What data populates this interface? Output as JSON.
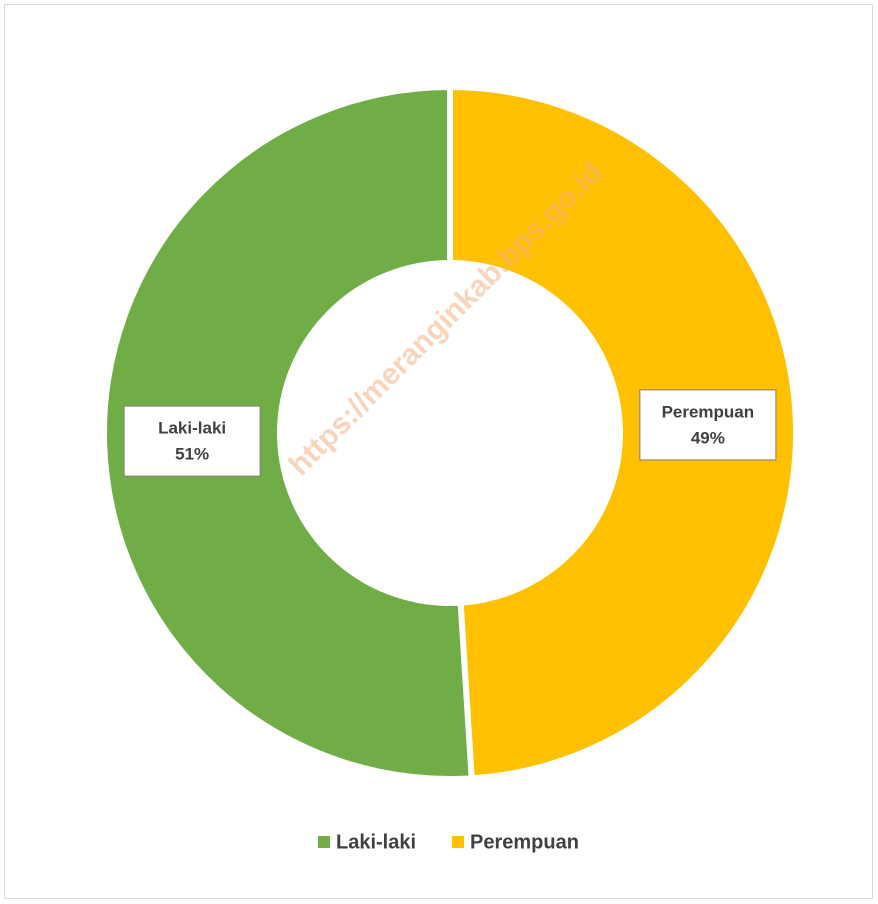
{
  "chart_data": {
    "type": "donut",
    "categories": [
      "Laki-laki",
      "Perempuan"
    ],
    "values": [
      51,
      49
    ],
    "value_labels": [
      "51%",
      "49%"
    ],
    "colors": [
      "#70ad47",
      "#ffc000"
    ],
    "legend": "bottom",
    "watermark": "https://meranginkab.bps.go.id"
  }
}
